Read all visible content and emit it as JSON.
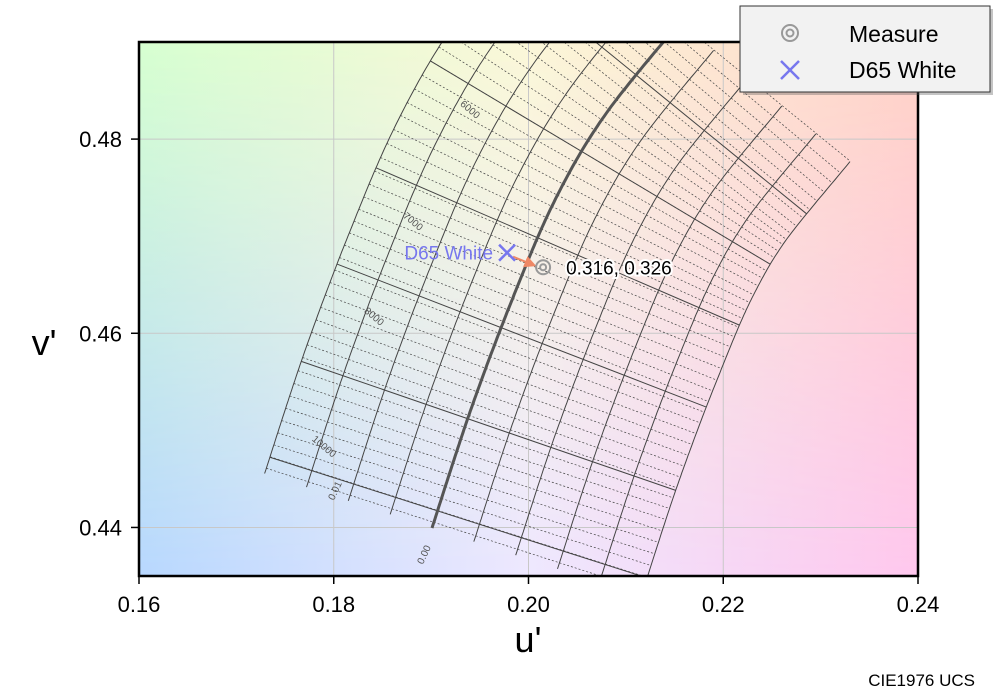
{
  "chart_data": {
    "type": "scatter",
    "title": "",
    "diagram": "CIE1976 UCS",
    "xlabel": "u'",
    "ylabel": "v'",
    "xlim": [
      0.16,
      0.24
    ],
    "ylim": [
      0.435,
      0.49
    ],
    "xticks": [
      "0.16",
      "0.18",
      "0.20",
      "0.22",
      "0.24"
    ],
    "yticks": [
      "0.44",
      "0.46",
      "0.48"
    ],
    "grid": true,
    "legend_position": "top-right",
    "legend": [
      {
        "label": "Measure",
        "marker": "circle-ring",
        "color": "#999999"
      },
      {
        "label": "D65 White",
        "marker": "x",
        "color": "#7777ee"
      }
    ],
    "points": [
      {
        "name": "Measure",
        "u": 0.2015,
        "v": 0.4668,
        "label": "0.316,  0.326"
      },
      {
        "name": "D65 White",
        "u": 0.1978,
        "v": 0.4683,
        "label": "D65 White"
      }
    ],
    "isotherm_labels": [
      "6000",
      "7000",
      "8000",
      "10000"
    ],
    "duv_labels": [
      "0.01",
      "0.00"
    ],
    "colors": {
      "measure_ring": "#999999",
      "d65": "#7777ee",
      "arrow": "#ee8866",
      "grid_lines": "#555555"
    }
  }
}
